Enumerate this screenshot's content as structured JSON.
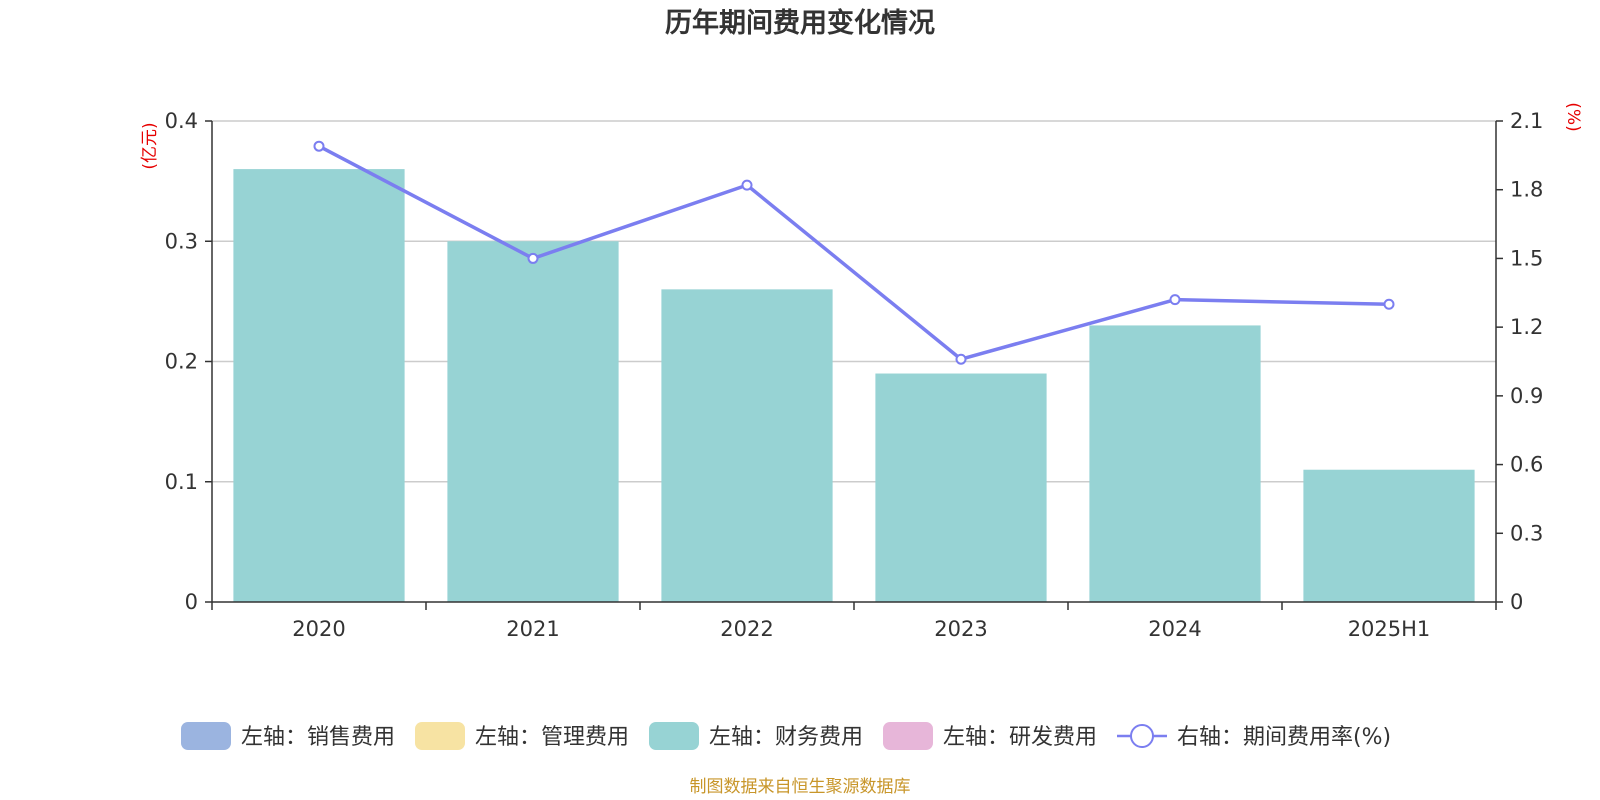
{
  "chart_data": {
    "type": "bar",
    "title": "历年期间费用变化情况",
    "categories": [
      "2020",
      "2021",
      "2022",
      "2023",
      "2024",
      "2025H1"
    ],
    "series": [
      {
        "name": "左轴：销售费用",
        "axis": "left",
        "kind": "bar",
        "color": "#9bb4e0",
        "values": [
          null,
          null,
          null,
          null,
          null,
          null
        ]
      },
      {
        "name": "左轴：管理费用",
        "axis": "left",
        "kind": "bar",
        "color": "#f7e3a3",
        "values": [
          null,
          null,
          null,
          null,
          null,
          null
        ]
      },
      {
        "name": "左轴：财务费用",
        "axis": "left",
        "kind": "bar",
        "color": "#97d3d4",
        "values": [
          0.36,
          0.3,
          0.26,
          0.19,
          0.23,
          0.11
        ]
      },
      {
        "name": "左轴：研发费用",
        "axis": "left",
        "kind": "bar",
        "color": "#e7b6d9",
        "values": [
          null,
          null,
          null,
          null,
          null,
          null
        ]
      },
      {
        "name": "右轴：期间费用率(%)",
        "axis": "right",
        "kind": "line",
        "color": "#7b7ef0",
        "values": [
          1.99,
          1.5,
          1.82,
          1.06,
          1.32,
          1.3
        ]
      }
    ],
    "left_axis": {
      "label": "(亿元)",
      "min": 0,
      "max": 0.4,
      "ticks": [
        0,
        0.1,
        0.2,
        0.3,
        0.4
      ],
      "tick_labels": [
        "0",
        "0.1",
        "0.2",
        "0.3",
        "0.4"
      ]
    },
    "right_axis": {
      "label": "(%)",
      "min": 0,
      "max": 2.1,
      "ticks": [
        0,
        0.3,
        0.6,
        0.9,
        1.2,
        1.5,
        1.8,
        2.1
      ],
      "tick_labels": [
        "0",
        "0.3",
        "0.6",
        "0.9",
        "1.2",
        "1.5",
        "1.8",
        "2.1"
      ]
    },
    "grid": true,
    "legend_position": "bottom"
  },
  "source_text": "制图数据来自恒生聚源数据库"
}
